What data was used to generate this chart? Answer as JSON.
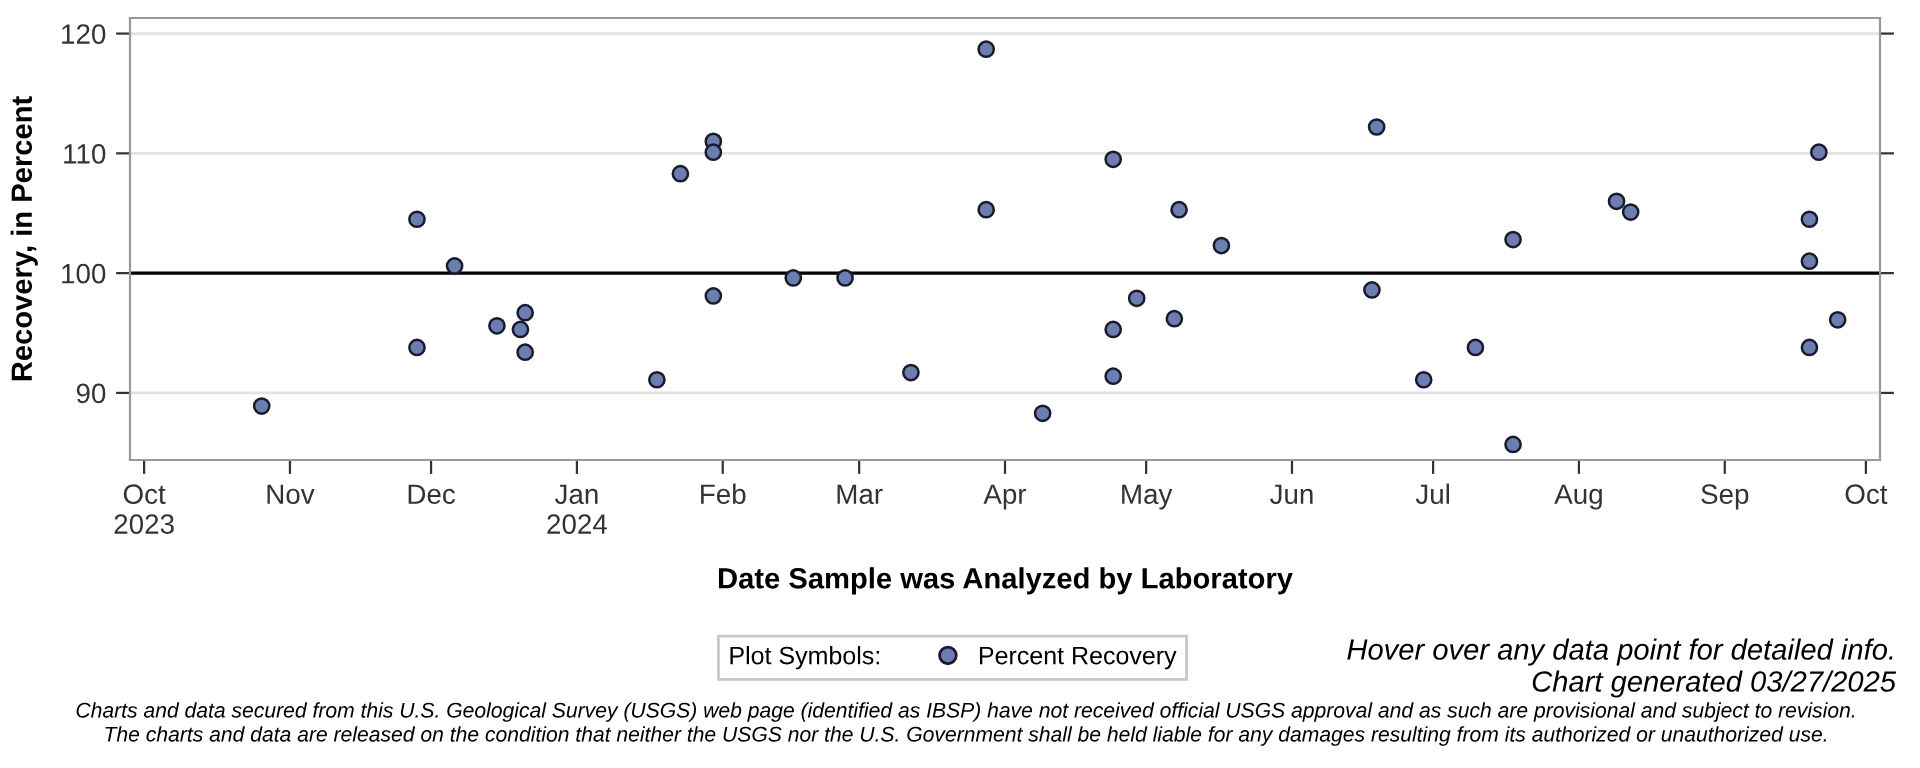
{
  "chart_data": {
    "type": "scatter",
    "xlabel": "Date Sample was Analyzed by Laboratory",
    "ylabel": "Recovery, in Percent",
    "legend_title": "Plot Symbols:",
    "legend": "bottom",
    "marker": "circle",
    "grid": "y",
    "xlim": [
      "2023-09-28",
      "2024-10-04"
    ],
    "ylim": [
      84.4,
      121.3
    ],
    "yticks": [
      90,
      100,
      110,
      120
    ],
    "xticks": [
      {
        "value": "2023-10-01",
        "label": "Oct\n2023"
      },
      {
        "value": "2023-11-01",
        "label": "Nov"
      },
      {
        "value": "2023-12-01",
        "label": "Dec"
      },
      {
        "value": "2024-01-01",
        "label": "Jan\n2024"
      },
      {
        "value": "2024-02-01",
        "label": "Feb"
      },
      {
        "value": "2024-03-01",
        "label": "Mar"
      },
      {
        "value": "2024-04-01",
        "label": "Apr"
      },
      {
        "value": "2024-05-01",
        "label": "May"
      },
      {
        "value": "2024-06-01",
        "label": "Jun"
      },
      {
        "value": "2024-07-01",
        "label": "Jul"
      },
      {
        "value": "2024-08-01",
        "label": "Aug"
      },
      {
        "value": "2024-09-01",
        "label": "Sep"
      },
      {
        "value": "2024-10-01",
        "label": "Oct"
      }
    ],
    "ref_lines": [
      {
        "axis": "y",
        "value": 100,
        "color": "#000000"
      }
    ],
    "series": [
      {
        "name": "Percent Recovery",
        "color": "#6c7db0",
        "x": [
          "2023-10-26",
          "2023-11-28",
          "2023-11-28",
          "2023-12-06",
          "2023-12-15",
          "2023-12-20",
          "2023-12-21",
          "2023-12-21",
          "2024-01-18",
          "2024-01-23",
          "2024-01-30",
          "2024-01-30",
          "2024-01-30",
          "2024-02-16",
          "2024-02-27",
          "2024-03-12",
          "2024-03-28",
          "2024-03-28",
          "2024-04-09",
          "2024-04-24",
          "2024-04-24",
          "2024-04-24",
          "2024-04-29",
          "2024-05-07",
          "2024-05-08",
          "2024-05-17",
          "2024-06-19",
          "2024-06-18",
          "2024-06-29",
          "2024-07-10",
          "2024-07-18",
          "2024-07-18",
          "2024-08-09",
          "2024-08-12",
          "2024-09-19",
          "2024-09-19",
          "2024-09-19",
          "2024-09-21",
          "2024-09-25"
        ],
        "values": [
          88.9,
          104.5,
          93.8,
          100.6,
          95.6,
          95.3,
          96.7,
          93.4,
          91.1,
          108.3,
          111.0,
          110.1,
          98.1,
          99.6,
          99.6,
          91.7,
          118.7,
          105.3,
          88.3,
          109.5,
          95.3,
          91.4,
          97.9,
          96.2,
          105.3,
          102.3,
          112.2,
          98.6,
          91.1,
          93.8,
          102.8,
          85.7,
          106.0,
          105.1,
          104.5,
          101.0,
          93.8,
          110.1,
          96.1
        ]
      }
    ],
    "annotations": [
      "Hover over any data point for detailed info.",
      "Chart generated 03/27/2025",
      "Charts and data secured from this U.S. Geological Survey (USGS) web page (identified as IBSP) have not received official USGS approval and as such are provisional and subject to revision.",
      "The charts and data are released on the condition that neither the USGS nor the U.S. Government shall be held liable for any damages resulting from its authorized or unauthorized use."
    ]
  }
}
